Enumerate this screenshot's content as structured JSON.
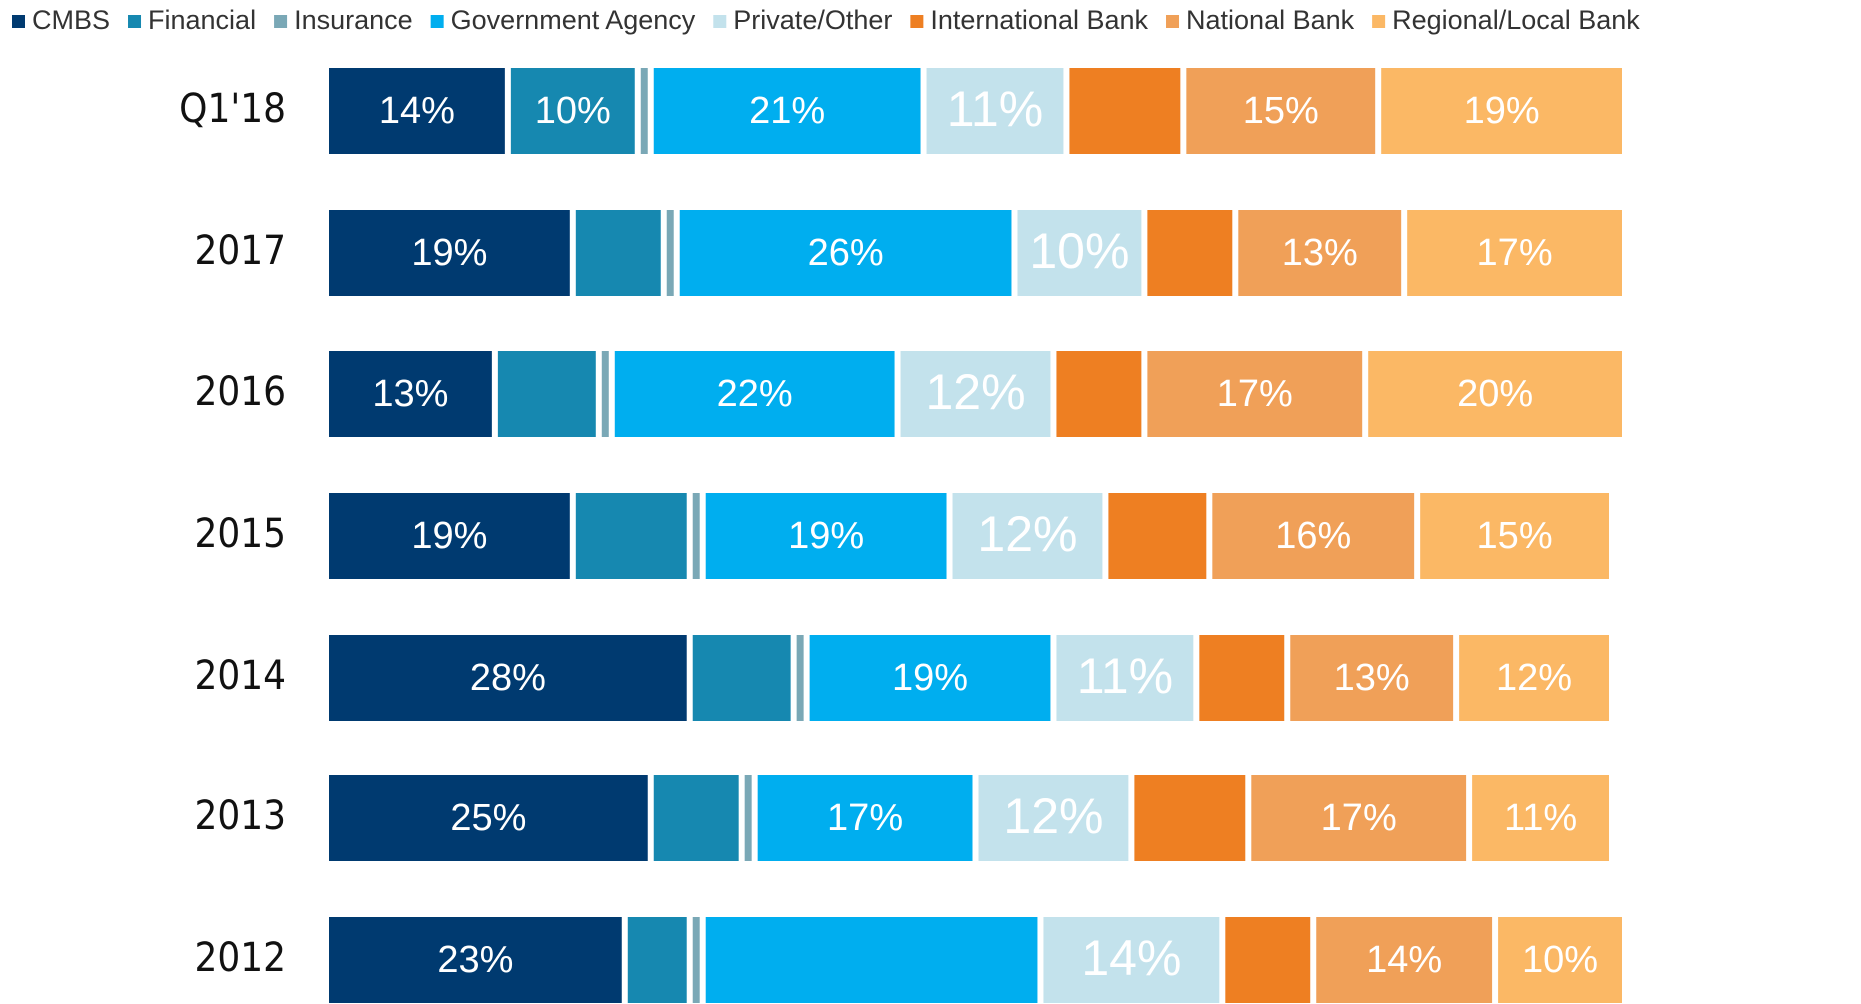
{
  "chart_data": {
    "type": "bar",
    "orientation": "horizontal",
    "stacked": true,
    "categories": [
      "Q1'18",
      "2017",
      "2016",
      "2015",
      "2014",
      "2013",
      "2012"
    ],
    "xlim": [
      0,
      100
    ],
    "series": [
      {
        "name": "CMBS",
        "color": "#003a70",
        "values": [
          14,
          19,
          13,
          19,
          28,
          25,
          23
        ],
        "value_labels": [
          "14%",
          "19%",
          "13%",
          "19%",
          "28%",
          "25%",
          "23%"
        ]
      },
      {
        "name": "Financial",
        "color": "#1688b0",
        "values": [
          10,
          7,
          8,
          9,
          8,
          7,
          5
        ],
        "value_labels": [
          "10%",
          null,
          null,
          null,
          null,
          null,
          null
        ]
      },
      {
        "name": "Insurance",
        "color": "#7aa8b6",
        "values": [
          1,
          1,
          1,
          1,
          1,
          1,
          1
        ],
        "value_labels": [
          null,
          null,
          null,
          null,
          null,
          null,
          null
        ]
      },
      {
        "name": "Government Agency",
        "color": "#00aeef",
        "values": [
          21,
          26,
          22,
          19,
          19,
          17,
          26
        ],
        "value_labels": [
          "21%",
          "26%",
          "22%",
          "19%",
          "19%",
          "17%",
          null
        ]
      },
      {
        "name": "Private/Other",
        "color": "#c3e2ec",
        "values": [
          11,
          10,
          12,
          12,
          11,
          12,
          14
        ],
        "value_labels": [
          "11%",
          "10%",
          "12%",
          "12%",
          "11%",
          "12%",
          "14%"
        ]
      },
      {
        "name": "International Bank",
        "color": "#ee7f22",
        "values": [
          9,
          7,
          7,
          8,
          7,
          9,
          7
        ],
        "value_labels": [
          null,
          null,
          null,
          null,
          null,
          null,
          null
        ]
      },
      {
        "name": "National Bank",
        "color": "#f0a058",
        "values": [
          15,
          13,
          17,
          16,
          13,
          17,
          14
        ],
        "value_labels": [
          "15%",
          "13%",
          "17%",
          "16%",
          "13%",
          "17%",
          "14%"
        ]
      },
      {
        "name": "Regional/Local Bank",
        "color": "#fbb865",
        "values": [
          19,
          17,
          20,
          15,
          12,
          11,
          10
        ],
        "value_labels": [
          "19%",
          "17%",
          "20%",
          "15%",
          "12%",
          "11%",
          "10%"
        ]
      }
    ]
  }
}
